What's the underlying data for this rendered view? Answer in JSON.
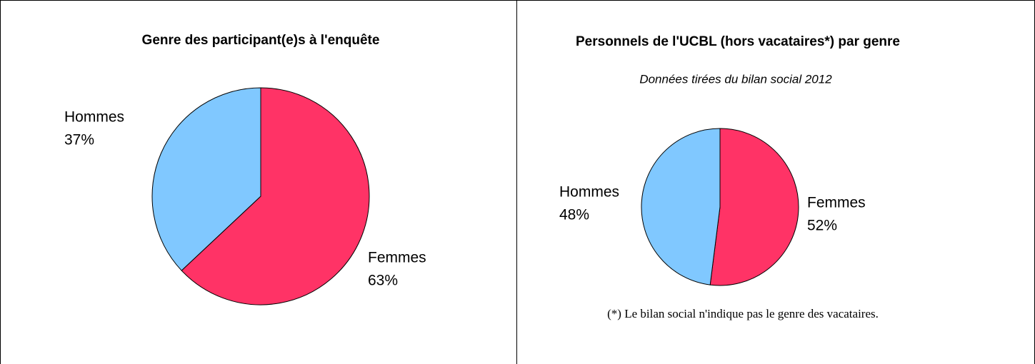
{
  "chart_data": [
    {
      "type": "pie",
      "title": "Genre des participant(e)s à l'enquête",
      "categories": [
        "Femmes",
        "Hommes"
      ],
      "values": [
        63,
        37
      ],
      "value_labels": [
        "63%",
        "37%"
      ],
      "colors": [
        "#ff3366",
        "#80c8ff"
      ]
    },
    {
      "type": "pie",
      "title": "Personnels de l'UCBL (hors vacataires*) par genre",
      "subtitle": "Données tirées du bilan social 2012",
      "categories": [
        "Femmes",
        "Hommes"
      ],
      "values": [
        52,
        48
      ],
      "value_labels": [
        "52%",
        "48%"
      ],
      "colors": [
        "#ff3366",
        "#80c8ff"
      ],
      "note": "(*) Le bilan social n'indique pas le genre des vacataires."
    }
  ]
}
